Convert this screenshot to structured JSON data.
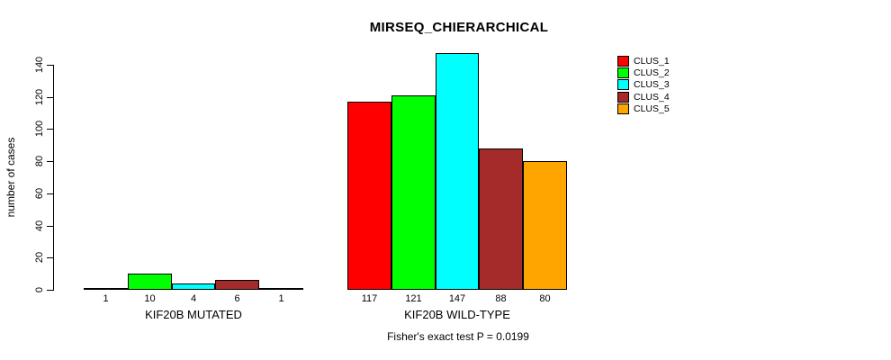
{
  "chart_data": {
    "type": "bar",
    "title": "MIRSEQ_CHIERARCHICAL",
    "ylabel": "number of cases",
    "xlabel": "",
    "yticks": [
      0,
      20,
      40,
      60,
      80,
      100,
      120,
      140
    ],
    "ylim": [
      0,
      140
    ],
    "grid": false,
    "legend_position": "top-right",
    "caption": "Fisher's exact test P = 0.0199",
    "groups": [
      {
        "label": "KIF20B MUTATED",
        "values": [
          1,
          10,
          4,
          6,
          1
        ]
      },
      {
        "label": "KIF20B WILD-TYPE",
        "values": [
          117,
          121,
          147,
          88,
          80
        ]
      }
    ],
    "series": [
      {
        "name": "CLUS_1",
        "color": "#ff0000"
      },
      {
        "name": "CLUS_2",
        "color": "#00ff00"
      },
      {
        "name": "CLUS_3",
        "color": "#00ffff"
      },
      {
        "name": "CLUS_4",
        "color": "#a52a2a"
      },
      {
        "name": "CLUS_5",
        "color": "#ffa500"
      }
    ],
    "bar_border_color": "#000000",
    "text_color": "#000000",
    "background_color": "#ffffff"
  }
}
